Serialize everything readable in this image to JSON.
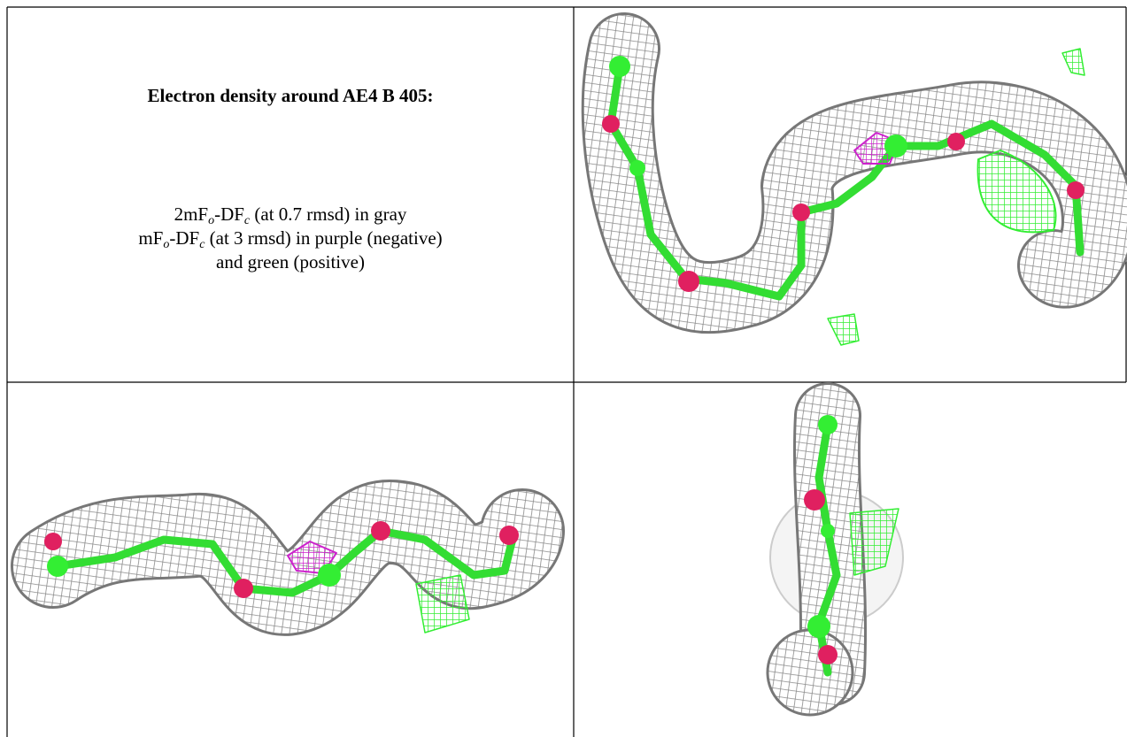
{
  "title": "Electron density around AE4 B 405:",
  "legend": {
    "line1": [
      "2mF",
      "o",
      "-DF",
      "c",
      " (at 0.7 rmsd) in gray"
    ],
    "line2": [
      "mF",
      "o",
      "-DF",
      "c",
      " (at 3 rmsd) in purple (negative)"
    ],
    "line3": "and green (positive)"
  }
}
